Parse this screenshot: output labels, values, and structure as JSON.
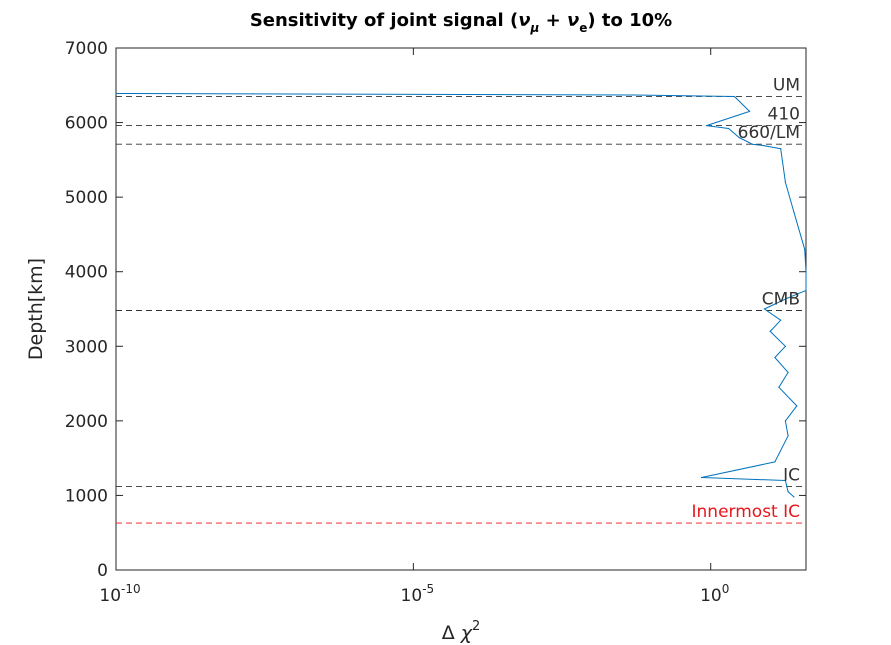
{
  "chart_data": {
    "type": "line",
    "title": "Sensitivity of joint signal (νμ + νe) to 10%",
    "title_parts": {
      "lead": "Sensitivity of joint signal (",
      "nu": "ν",
      "mu": "μ",
      "plus": " + ",
      "e": "e",
      "tail": ")  to 10%"
    },
    "xlabel": "Δ χ2",
    "xlabel_parts": {
      "delta": "Δ",
      "chi": "χ",
      "sup": "2"
    },
    "ylabel": "Depth[km]",
    "x_scale": "log",
    "xlim": [
      1e-10,
      40
    ],
    "ylim": [
      0,
      7000
    ],
    "x_ticks": [
      {
        "value": 1e-10,
        "base": "10",
        "exp": "-10"
      },
      {
        "value": 1e-05,
        "base": "10",
        "exp": "-5"
      },
      {
        "value": 1,
        "base": "10",
        "exp": "0"
      }
    ],
    "y_ticks": [
      {
        "value": 0,
        "label": "0"
      },
      {
        "value": 1000,
        "label": "1000"
      },
      {
        "value": 2000,
        "label": "2000"
      },
      {
        "value": 3000,
        "label": "3000"
      },
      {
        "value": 4000,
        "label": "4000"
      },
      {
        "value": 5000,
        "label": "5000"
      },
      {
        "value": 6000,
        "label": "6000"
      },
      {
        "value": 7000,
        "label": "7000"
      }
    ],
    "grid": false,
    "series": [
      {
        "color": "#0072BD",
        "points": [
          {
            "depth": 6390,
            "chi2": 1e-10
          },
          {
            "depth": 6385,
            "chi2": 2e-08
          },
          {
            "depth": 6370,
            "chi2": 0.05
          },
          {
            "depth": 6350,
            "chi2": 2.5
          },
          {
            "depth": 6150,
            "chi2": 4.5
          },
          {
            "depth": 5960,
            "chi2": 0.85
          },
          {
            "depth": 5920,
            "chi2": 2.0
          },
          {
            "depth": 5800,
            "chi2": 3.0
          },
          {
            "depth": 5710,
            "chi2": 5.0
          },
          {
            "depth": 5690,
            "chi2": 8.0
          },
          {
            "depth": 5650,
            "chi2": 15.0
          },
          {
            "depth": 5200,
            "chi2": 18.0
          },
          {
            "depth": 4800,
            "chi2": 25.0
          },
          {
            "depth": 4300,
            "chi2": 38.0
          },
          {
            "depth": 4000,
            "chi2": 40.0
          },
          {
            "depth": 3750,
            "chi2": 40.0
          },
          {
            "depth": 3650,
            "chi2": 20.0
          },
          {
            "depth": 3500,
            "chi2": 8.0
          },
          {
            "depth": 3350,
            "chi2": 15.0
          },
          {
            "depth": 3200,
            "chi2": 10.0
          },
          {
            "depth": 3000,
            "chi2": 18.0
          },
          {
            "depth": 2850,
            "chi2": 12.0
          },
          {
            "depth": 2650,
            "chi2": 20.0
          },
          {
            "depth": 2450,
            "chi2": 14.0
          },
          {
            "depth": 2200,
            "chi2": 28.0
          },
          {
            "depth": 2000,
            "chi2": 18.0
          },
          {
            "depth": 1800,
            "chi2": 20.0
          },
          {
            "depth": 1450,
            "chi2": 12.0
          },
          {
            "depth": 1240,
            "chi2": 0.7
          },
          {
            "depth": 1200,
            "chi2": 18.0
          },
          {
            "depth": 1050,
            "chi2": 20.0
          },
          {
            "depth": 980,
            "chi2": 25.0
          }
        ]
      }
    ],
    "reference_lines": [
      {
        "depth": 6350,
        "label": "UM",
        "color": "#333333"
      },
      {
        "depth": 5960,
        "label": "410",
        "color": "#333333"
      },
      {
        "depth": 5710,
        "label": "660/LM",
        "color": "#333333"
      },
      {
        "depth": 3480,
        "label": "CMB",
        "color": "#333333"
      },
      {
        "depth": 1120,
        "label": "IC",
        "color": "#333333"
      },
      {
        "depth": 630,
        "label": "Innermost IC",
        "color": "#e8151b"
      }
    ]
  }
}
